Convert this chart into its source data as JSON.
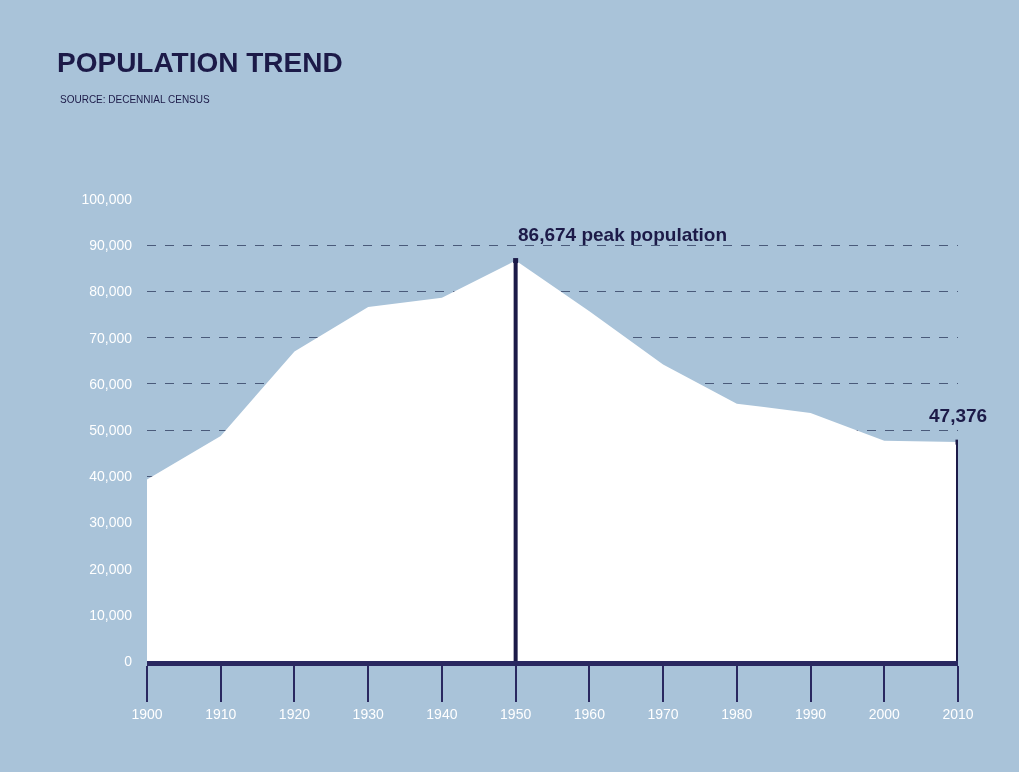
{
  "chart_data": {
    "type": "area",
    "title": "POPULATION TREND",
    "subtitle": "SOURCE: DECENNIAL CENSUS",
    "x": [
      1900,
      1910,
      1920,
      1930,
      1940,
      1950,
      1960,
      1970,
      1980,
      1990,
      2000,
      2010
    ],
    "series": [
      {
        "color": "#ffffff",
        "values": [
          39300,
          48700,
          67000,
          76600,
          78600,
          86674,
          75700,
          64200,
          55700,
          53700,
          47700,
          47376
        ]
      },
      {
        "type": "lollipop",
        "marker": "square",
        "color": "#1c1a48",
        "x": [
          1950,
          2010
        ],
        "values": [
          86674,
          47376
        ]
      }
    ],
    "xlim": [
      1900,
      2010
    ],
    "xticks": [
      1900,
      1910,
      1920,
      1930,
      1940,
      1950,
      1960,
      1970,
      1980,
      1990,
      2000,
      2010
    ],
    "ylim": [
      0,
      100000
    ],
    "yticks": [
      {
        "value": 0,
        "label": "0"
      },
      {
        "value": 10000,
        "label": "10,000"
      },
      {
        "value": 20000,
        "label": "20,000"
      },
      {
        "value": 30000,
        "label": "30,000"
      },
      {
        "value": 40000,
        "label": "40,000"
      },
      {
        "value": 50000,
        "label": "50,000"
      },
      {
        "value": 60000,
        "label": "60,000"
      },
      {
        "value": 70000,
        "label": "70,000"
      },
      {
        "value": 80000,
        "label": "80,000"
      },
      {
        "value": 90000,
        "label": "90,000"
      },
      {
        "value": 100000,
        "label": "100,000"
      }
    ],
    "grid": "y",
    "annotations": [
      {
        "text": "86,674 peak population",
        "x": 1950,
        "y": 86674
      },
      {
        "text": "47,376",
        "x": 2010,
        "y": 47376
      }
    ]
  }
}
